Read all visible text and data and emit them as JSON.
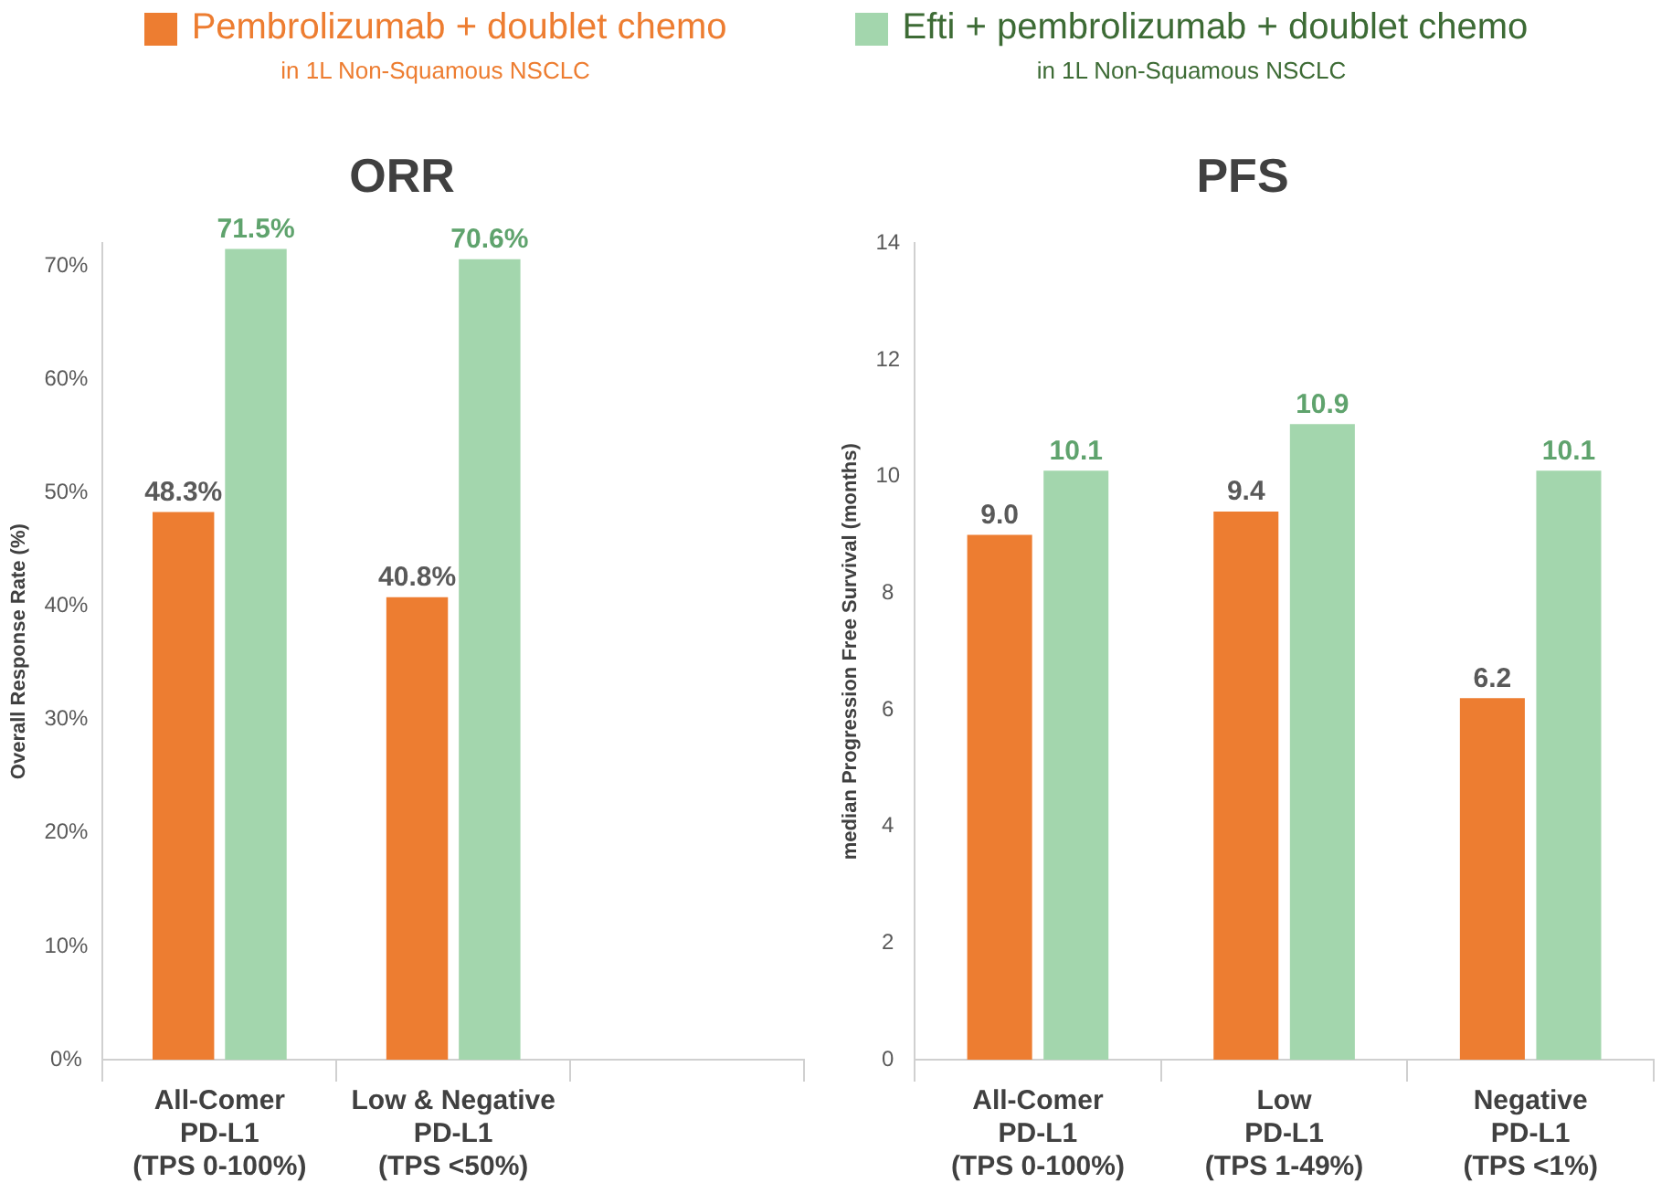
{
  "chart_data": [
    {
      "type": "bar",
      "title": "ORR",
      "ylabel": "Overall Response Rate (%)",
      "categories": [
        "All-Comer\nPD-L1\n(TPS 0-100%)",
        "Low & Negative\nPD-L1\n(TPS <50%)",
        null
      ],
      "series": [
        {
          "name": "Pembrolizumab + doublet chemo",
          "color": "#ed7d31",
          "values": [
            48.3,
            40.8,
            null
          ],
          "value_labels": [
            "48.3%",
            "40.8%",
            null
          ]
        },
        {
          "name": "Efti + pembrolizumab + doublet chemo",
          "color": "#a3d6ad",
          "values": [
            71.5,
            70.6,
            null
          ],
          "value_labels": [
            "71.5%",
            "70.6%",
            null
          ]
        }
      ],
      "ylim": [
        0,
        72
      ],
      "yticks": [
        {
          "value": 0,
          "label": "0%"
        },
        {
          "value": 10,
          "label": "10%"
        },
        {
          "value": 20,
          "label": "20%"
        },
        {
          "value": 30,
          "label": "30%"
        },
        {
          "value": 40,
          "label": "40%"
        },
        {
          "value": 50,
          "label": "50%"
        },
        {
          "value": 60,
          "label": "60%"
        },
        {
          "value": 70,
          "label": "70%"
        }
      ],
      "grid": false,
      "legend": "top",
      "annotations": [
        "in 1L Non-Squamous NSCLC",
        "in 1L Non-Squamous NSCLC"
      ]
    },
    {
      "type": "bar",
      "title": "PFS",
      "ylabel": "median Progression Free Survival (months)",
      "categories": [
        "All-Comer\nPD-L1\n(TPS 0-100%)",
        "Low\nPD-L1\n(TPS 1-49%)",
        "Negative\nPD-L1\n(TPS <1%)"
      ],
      "series": [
        {
          "color": "#ed7d31",
          "values": [
            9.0,
            9.4,
            6.2
          ],
          "value_labels": [
            "9.0",
            "9.4",
            "6.2"
          ]
        },
        {
          "color": "#a3d6ad",
          "values": [
            10.1,
            10.9,
            10.1
          ],
          "value_labels": [
            "10.1",
            "10.9",
            "10.1"
          ]
        }
      ],
      "ylim": [
        0,
        14
      ],
      "yticks": [
        0,
        2,
        4,
        6,
        8,
        10,
        12,
        14
      ],
      "grid": false
    }
  ]
}
